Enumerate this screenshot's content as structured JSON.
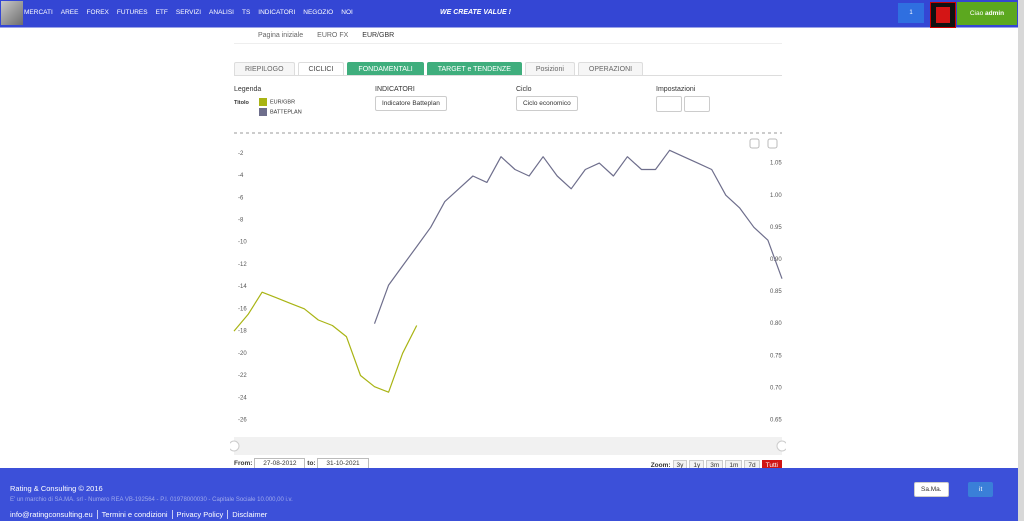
{
  "nav": {
    "menu": [
      "MERCATI",
      "AREE",
      "FOREX",
      "FUTURES",
      "ETF",
      "SERVIZI",
      "ANALISI",
      "TS",
      "INDICATORI",
      "NEGOZIO",
      "NOI"
    ],
    "slogan": "WE CREATE VALUE !",
    "cart": "1",
    "user_greeting": "Ciao",
    "user": "admin"
  },
  "breadcrumb": [
    "Pagina iniziale",
    "EURO FX",
    "EUR/GBR"
  ],
  "tabs": [
    "RIEPILOGO",
    "CICLICI",
    "FONDAMENTALI",
    "TARGET e TENDENZE",
    "Posizioni",
    "OPERAZIONI"
  ],
  "controls": {
    "legend_label": "Legenda",
    "title_label": "Titolo",
    "indicators_label": "INDICATORI",
    "indicator": "Indicatore Batteplan",
    "cycle_label": "Ciclo",
    "cycle": "Ciclo economico",
    "settings_label": "Impostazioni"
  },
  "chart_data": {
    "type": "line",
    "ylim": [
      -26,
      0
    ],
    "yticks": [
      -2,
      -4,
      -6,
      -8,
      -10,
      -12,
      -14,
      -16,
      -18,
      -20,
      -22,
      -24,
      -26
    ],
    "y2lim": [
      0.65,
      1.1
    ],
    "y2ticks": [
      1.05,
      {
        "value": 1,
        "label": "1.00"
      },
      0.95,
      {
        "value": 0.9,
        "label": "0.90"
      },
      0.85,
      {
        "value": 0.8,
        "label": "0.80"
      },
      0.75,
      {
        "value": 0.7,
        "label": "0.70"
      },
      0.65
    ],
    "series": [
      {
        "name": "EUR/GBR",
        "color": "#a9b414",
        "values": [
          -18,
          -16.5,
          -14.5,
          -15,
          -15.5,
          -16,
          -17,
          -17.5,
          -18.5,
          -22,
          -23,
          -23.5,
          -20,
          -17.5,
          null,
          null,
          null,
          null,
          null,
          null,
          null,
          null,
          null,
          null,
          null,
          null,
          null,
          null,
          null,
          null,
          null,
          null,
          null,
          null,
          null,
          null,
          null,
          null,
          null,
          null
        ]
      },
      {
        "name": "BATTEPLAN",
        "color": "#6e6e8c",
        "axis": "y2",
        "values": [
          null,
          null,
          null,
          null,
          null,
          null,
          null,
          null,
          null,
          null,
          0.8,
          0.86,
          0.89,
          0.92,
          0.95,
          0.99,
          1.01,
          1.03,
          1.02,
          1.06,
          1.04,
          1.03,
          1.06,
          1.03,
          1.01,
          1.04,
          1.05,
          1.03,
          1.06,
          1.04,
          1.04,
          1.07,
          1.06,
          1.05,
          1.04,
          1.0,
          0.98,
          0.95,
          0.93,
          0.87
        ]
      }
    ]
  },
  "range": {
    "from_label": "From:",
    "from": "27-08-2012",
    "to_label": "to:",
    "to": "31-10-2021",
    "zoom_label": "Zoom:",
    "zoom": [
      "3y",
      "1y",
      "3m",
      "1m",
      "7d",
      "Tutti"
    ]
  },
  "footer": {
    "brand": "Rating & Consulting © 2016",
    "legal": "E' un marchio di SA.MA. srl - Numero REA VB-192564 - P.I. 01978000030 - Capitale Sociale 10.000,00 i.v.",
    "links": [
      "info@ratingconsulting.eu",
      "Termini e condizioni",
      "Privacy Policy",
      "Disclaimer"
    ],
    "company": "Sa.Ma.",
    "language": "it"
  }
}
